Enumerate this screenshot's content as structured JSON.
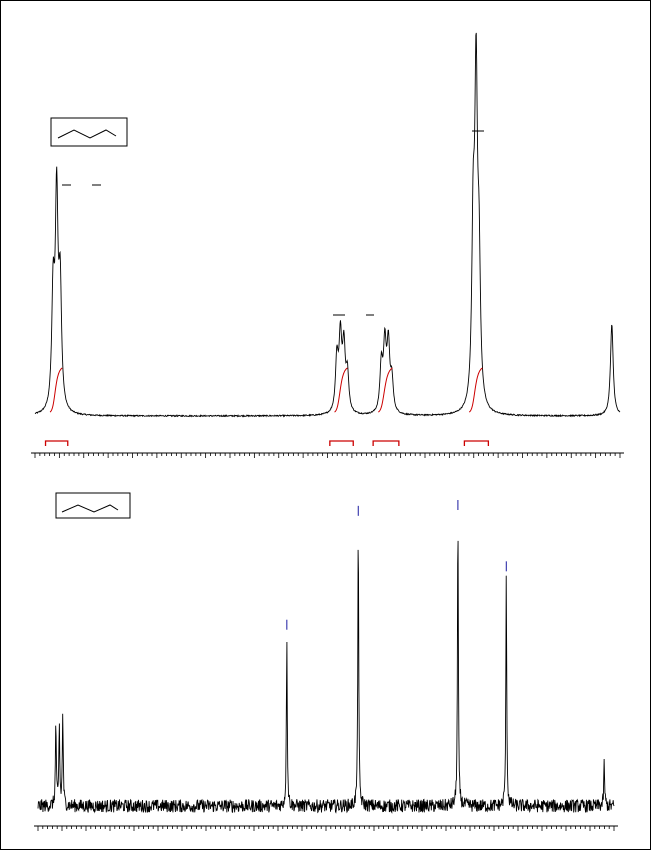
{
  "chart_data": [
    {
      "type": "line",
      "spectrum": "1H NMR",
      "title": "",
      "xlabel": "",
      "ylabel": "",
      "xlim": [
        0.0,
        1.0
      ],
      "ylim": [
        0.0,
        1.0
      ],
      "x_reversed": false,
      "grid": false,
      "legend": "none",
      "line_color": "#000000",
      "integral_color": "#cc0000",
      "peaks": [
        {
          "center": 0.037,
          "offsets": [
            -0.006,
            0.0,
            0.006
          ],
          "heights": [
            0.36,
            0.66,
            0.38
          ]
        },
        {
          "center": 0.525,
          "offsets": [
            -0.009,
            -0.003,
            0.003,
            0.009
          ],
          "heights": [
            0.17,
            0.23,
            0.2,
            0.12
          ]
        },
        {
          "center": 0.601,
          "offsets": [
            -0.009,
            -0.003,
            0.003,
            0.009
          ],
          "heights": [
            0.15,
            0.21,
            0.21,
            0.1
          ]
        },
        {
          "center": 0.754,
          "offsets": [
            -0.005,
            0.0,
            0.005
          ],
          "heights": [
            0.53,
            1.0,
            0.42
          ]
        },
        {
          "center": 0.986,
          "offsets": [
            0.0
          ],
          "heights": [
            0.29
          ]
        }
      ],
      "integrals": [
        {
          "from": 0.018,
          "to": 0.056
        },
        {
          "from": 0.504,
          "to": 0.544
        },
        {
          "from": 0.578,
          "to": 0.622
        },
        {
          "from": 0.734,
          "to": 0.775
        }
      ]
    },
    {
      "type": "line",
      "spectrum": "13C NMR",
      "title": "",
      "xlabel": "",
      "ylabel": "",
      "xlim": [
        0.0,
        1.0
      ],
      "ylim": [
        0.0,
        1.0
      ],
      "x_reversed": false,
      "grid": false,
      "legend": "none",
      "line_color": "#000000",
      "pick_color": "#1a1aa0",
      "peaks": [
        {
          "center": 0.037,
          "offsets": [
            -0.006,
            0.0,
            0.006
          ],
          "heights": [
            0.29,
            0.28,
            0.32
          ]
        },
        {
          "center": 0.432,
          "offsets": [
            0.0
          ],
          "heights": [
            0.59
          ]
        },
        {
          "center": 0.556,
          "offsets": [
            0.0
          ],
          "heights": [
            0.98
          ]
        },
        {
          "center": 0.729,
          "offsets": [
            0.0
          ],
          "heights": [
            1.0
          ]
        },
        {
          "center": 0.813,
          "offsets": [
            0.0
          ],
          "heights": [
            0.79
          ]
        },
        {
          "center": 0.983,
          "offsets": [
            0.0
          ],
          "heights": [
            0.15
          ]
        }
      ],
      "picks": [
        0.432,
        0.556,
        0.729,
        0.813
      ]
    }
  ]
}
